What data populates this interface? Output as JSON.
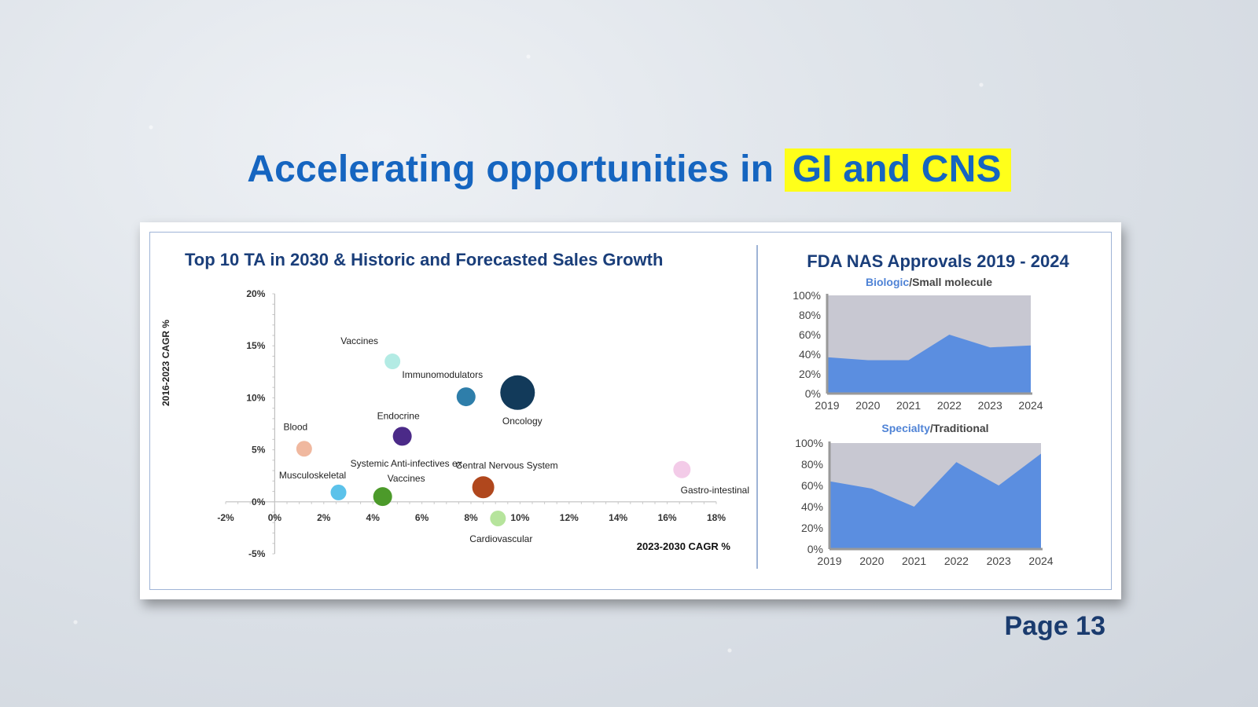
{
  "slide": {
    "title_main": "Accelerating opportunities in ",
    "title_highlight": "GI and CNS",
    "page_label": "Page 13"
  },
  "colors": {
    "title": "#1565c0",
    "highlight": "#ffff1a",
    "panel_title": "#1a3e7a",
    "area_fill": "#5b8ee0",
    "area_bg": "#c8c8d2"
  },
  "chart_data": [
    {
      "type": "scatter",
      "title": "Top 10 TA in 2030 & Historic and Forecasted Sales Growth",
      "xlabel": "2023-2030 CAGR %",
      "ylabel": "2016-2023 CAGR %",
      "xlim": [
        -2,
        18
      ],
      "ylim": [
        -5,
        20
      ],
      "xticks": [
        "-2%",
        "0%",
        "2%",
        "4%",
        "6%",
        "8%",
        "10%",
        "12%",
        "14%",
        "16%",
        "18%"
      ],
      "yticks": [
        "20%",
        "15%",
        "10%",
        "5%",
        "0%",
        "-5%"
      ],
      "points": [
        {
          "name": "Vaccines",
          "x": 4.8,
          "y": 13.5,
          "size": 10,
          "color": "#b3ebe4"
        },
        {
          "name": "Immunomodulators",
          "x": 7.8,
          "y": 10.1,
          "size": 12,
          "color": "#2e7eaa"
        },
        {
          "name": "Oncology",
          "x": 9.9,
          "y": 10.5,
          "size": 22,
          "color": "#123a5a"
        },
        {
          "name": "Endocrine",
          "x": 5.2,
          "y": 6.3,
          "size": 12,
          "color": "#4b2a88"
        },
        {
          "name": "Blood",
          "x": 1.2,
          "y": 5.1,
          "size": 10,
          "color": "#f0b89f"
        },
        {
          "name": "Musculoskeletal",
          "x": 2.6,
          "y": 0.9,
          "size": 10,
          "color": "#5cc2ea"
        },
        {
          "name": "Systemic Anti-infectives ex Vaccines",
          "x": 4.4,
          "y": 0.5,
          "size": 12,
          "color": "#4c9a2a"
        },
        {
          "name": "Central Nervous System",
          "x": 8.5,
          "y": 1.4,
          "size": 14,
          "color": "#b0471d"
        },
        {
          "name": "Cardiovascular",
          "x": 9.1,
          "y": -1.6,
          "size": 10,
          "color": "#b6e49c"
        },
        {
          "name": "Gastro-intestinal",
          "x": 16.6,
          "y": 3.1,
          "size": 11,
          "color": "#f3cbe8"
        }
      ]
    },
    {
      "type": "area",
      "title": "FDA NAS Approvals 2019 - 2024",
      "subtitle_a": "Biologic",
      "subtitle_b": "/Small molecule",
      "x": [
        "2019",
        "2020",
        "2021",
        "2022",
        "2023",
        "2024"
      ],
      "yticks": [
        "100%",
        "80%",
        "60%",
        "40%",
        "20%",
        "0%"
      ],
      "ylim": [
        0,
        100
      ],
      "values": [
        37,
        34,
        34,
        60,
        47,
        49
      ]
    },
    {
      "type": "area",
      "subtitle_a": "Specialty",
      "subtitle_b": "/Traditional",
      "x": [
        "2019",
        "2020",
        "2021",
        "2022",
        "2023",
        "2024"
      ],
      "yticks": [
        "100%",
        "80%",
        "60%",
        "40%",
        "20%",
        "0%"
      ],
      "ylim": [
        0,
        100
      ],
      "values": [
        64,
        57,
        40,
        82,
        60,
        90
      ]
    }
  ]
}
